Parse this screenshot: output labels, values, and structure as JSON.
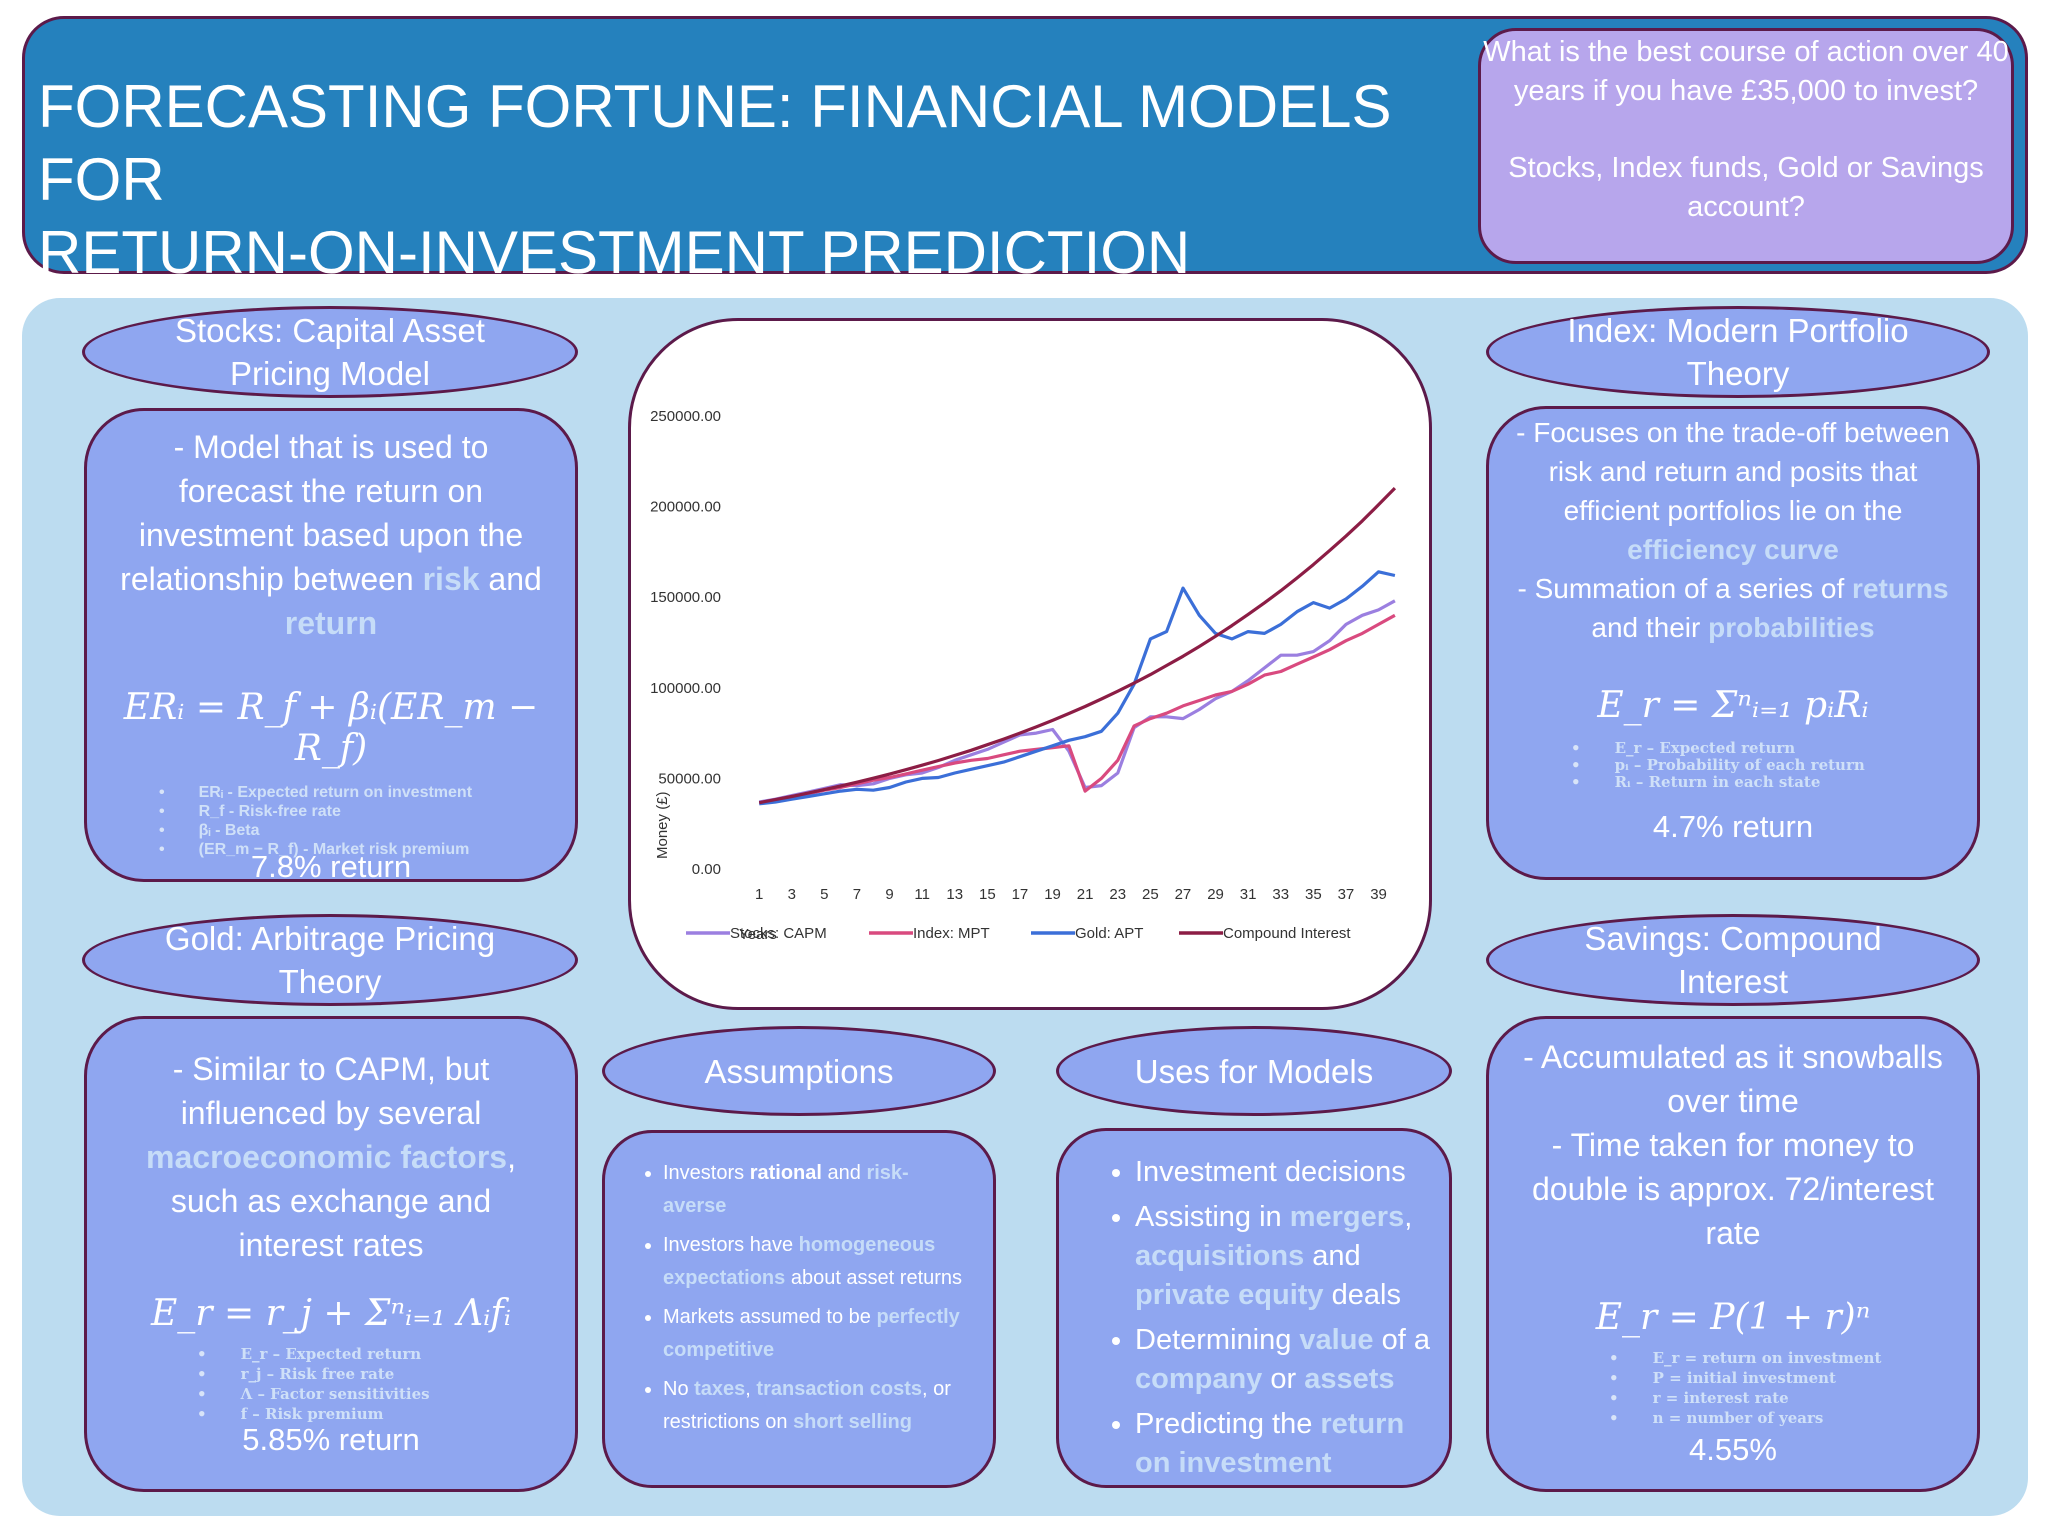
{
  "header": {
    "title_line1": "FORECASTING FORTUNE: FINANCIAL MODELS FOR",
    "title_line2": "RETURN-ON-INVESTMENT PREDICTION",
    "question_line1": "What is the best course of action over 40 years if you have £35,000 to invest?",
    "question_line2": "Stocks, Index funds, Gold or Savings account?"
  },
  "stocks": {
    "title": "Stocks: Capital Asset Pricing Model",
    "body_pre": "- Model that is used to forecast the return on investment based upon the relationship between ",
    "hl1": "risk",
    "mid": " and ",
    "hl2": "return",
    "formula": "ERᵢ = R_f + βᵢ(ER_m − R_f)",
    "legend": [
      "ERᵢ - Expected return on investment",
      "R_f - Risk-free rate",
      "βᵢ - Beta",
      "(ER_m − R_f) - Market risk premium"
    ],
    "return": "7.8% return"
  },
  "gold": {
    "title": "Gold: Arbitrage Pricing Theory",
    "body_pre": "- Similar to CAPM, but influenced by several ",
    "hl1": "macroeconomic factors",
    "body_post": ", such as exchange and interest rates",
    "formula": "E_r = r_j + Σⁿᵢ₌₁ Λᵢfᵢ",
    "legend": [
      "E_r – Expected return",
      "r_j – Risk free rate",
      "Λ – Factor sensitivities",
      "f – Risk premium"
    ],
    "return": "5.85% return"
  },
  "index": {
    "title": "Index: Modern Portfolio Theory",
    "body_pre": "- Focuses on the trade-off between risk and return and posits that efficient portfolios lie on the ",
    "hl1": "efficiency curve",
    "body_mid": "- Summation of a series of ",
    "hl2": "returns",
    "mid2": " and their ",
    "hl3": "probabilities",
    "formula": "E_r = Σⁿᵢ₌₁ pᵢRᵢ",
    "legend": [
      "E_r – Expected return",
      "pᵢ – Probability of each return",
      "Rᵢ – Return in each state"
    ],
    "return": "4.7% return"
  },
  "savings": {
    "title": "Savings: Compound Interest",
    "body1": "- Accumulated as it snowballs over time",
    "body2": "- Time taken for money to double is approx. 72/interest rate",
    "formula": "E_r = P(1 + r)ⁿ",
    "legend": [
      "E_r = return on investment",
      "P = initial investment",
      "r = interest rate",
      "n = number of years"
    ],
    "return": "4.55%"
  },
  "assumptions": {
    "title": "Assumptions",
    "items": [
      {
        "parts": [
          [
            "Investors ",
            ""
          ],
          [
            "rational",
            "b"
          ],
          [
            " and ",
            ""
          ],
          [
            "risk-averse",
            "hl"
          ]
        ]
      },
      {
        "parts": [
          [
            "Investors have ",
            ""
          ],
          [
            "homogeneous expectations",
            "hl"
          ],
          [
            " about asset returns",
            ""
          ]
        ]
      },
      {
        "parts": [
          [
            "Markets assumed to be ",
            ""
          ],
          [
            "perfectly competitive",
            "hl"
          ]
        ]
      },
      {
        "parts": [
          [
            "No ",
            ""
          ],
          [
            "taxes",
            "hl"
          ],
          [
            ", ",
            ""
          ],
          [
            "transaction costs",
            "hl"
          ],
          [
            ", or restrictions on ",
            ""
          ],
          [
            "short selling",
            "hl"
          ]
        ]
      }
    ]
  },
  "uses": {
    "title": "Uses for Models",
    "items": [
      {
        "parts": [
          [
            "Investment decisions",
            ""
          ]
        ]
      },
      {
        "parts": [
          [
            "Assisting in ",
            ""
          ],
          [
            "mergers",
            "hl"
          ],
          [
            ", ",
            ""
          ],
          [
            "acquisitions",
            "hl"
          ],
          [
            " and ",
            ""
          ],
          [
            "private equity",
            "hl"
          ],
          [
            " deals",
            ""
          ]
        ]
      },
      {
        "parts": [
          [
            "Determining ",
            ""
          ],
          [
            "value",
            "hl"
          ],
          [
            " of a ",
            ""
          ],
          [
            "company",
            "hl"
          ],
          [
            " or ",
            ""
          ],
          [
            "assets",
            "hl"
          ]
        ]
      },
      {
        "parts": [
          [
            "Predicting the ",
            ""
          ],
          [
            "return on investment",
            "hl"
          ]
        ]
      }
    ]
  },
  "chart_data": {
    "type": "line",
    "xlabel": "Years",
    "ylabel": "Money (£)",
    "ylim": [
      0,
      250000
    ],
    "yticks": [
      "0.00",
      "50000.00",
      "100000.00",
      "150000.00",
      "200000.00",
      "250000.00"
    ],
    "xticks": [
      1,
      3,
      5,
      7,
      9,
      11,
      13,
      15,
      17,
      19,
      21,
      23,
      25,
      27,
      29,
      31,
      33,
      35,
      37,
      39
    ],
    "x": [
      1,
      2,
      3,
      4,
      5,
      6,
      7,
      8,
      9,
      10,
      11,
      12,
      13,
      14,
      15,
      16,
      17,
      18,
      19,
      20,
      21,
      22,
      23,
      24,
      25,
      26,
      27,
      28,
      29,
      30,
      31,
      32,
      33,
      34,
      35,
      36,
      37,
      38,
      39,
      40
    ],
    "legend_position": "bottom",
    "series": [
      {
        "name": "Stocks: CAPM",
        "color": "#9b7fe0",
        "values": [
          37000,
          38500,
          40500,
          42500,
          44500,
          46500,
          46000,
          47000,
          50000,
          52000,
          53000,
          56000,
          60000,
          63000,
          66000,
          70000,
          74000,
          75000,
          77000,
          65000,
          45000,
          46000,
          53000,
          78000,
          84000,
          84000,
          83000,
          88000,
          94000,
          98000,
          104000,
          111000,
          118000,
          118000,
          120000,
          126000,
          135000,
          140000,
          143000,
          148000
        ]
      },
      {
        "name": "Index: MPT",
        "color": "#d94a7f",
        "values": [
          36500,
          38000,
          40000,
          41500,
          43500,
          45000,
          47000,
          49000,
          50500,
          52500,
          54500,
          56500,
          58500,
          60000,
          61000,
          63000,
          65000,
          66000,
          67000,
          68000,
          43000,
          50000,
          60000,
          79000,
          83000,
          86000,
          90000,
          93000,
          96000,
          98000,
          102000,
          107000,
          109000,
          113000,
          117000,
          121000,
          126000,
          130000,
          135000,
          140000
        ]
      },
      {
        "name": "Gold: APT",
        "color": "#3b6fd8",
        "values": [
          36000,
          37000,
          38500,
          40000,
          41500,
          43000,
          44000,
          43500,
          45000,
          48000,
          50000,
          50500,
          53000,
          55000,
          57000,
          59000,
          62000,
          65000,
          68000,
          71000,
          73000,
          76000,
          86000,
          102000,
          127000,
          131000,
          155000,
          140000,
          130000,
          127000,
          131000,
          130000,
          135000,
          142000,
          147000,
          144000,
          149000,
          156000,
          164000,
          162000
        ]
      },
      {
        "name": "Compound Interest",
        "color": "#8c1d45",
        "values": [
          36600,
          38300,
          40000,
          41900,
          43800,
          45800,
          47900,
          50100,
          52400,
          54800,
          57300,
          59900,
          62700,
          65500,
          68600,
          71700,
          75000,
          78400,
          82000,
          85800,
          89700,
          93800,
          98100,
          102600,
          107300,
          112300,
          117400,
          122800,
          128400,
          134300,
          140500,
          146900,
          153600,
          160600,
          168000,
          175700,
          183700,
          192100,
          201000,
          210200
        ]
      }
    ]
  }
}
